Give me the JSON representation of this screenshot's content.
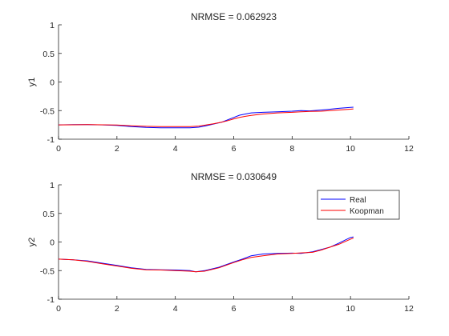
{
  "chart_data": [
    {
      "type": "line",
      "title": "NRMSE = 0.062923",
      "xlabel": "",
      "ylabel": "y1",
      "xlim": [
        0,
        12
      ],
      "ylim": [
        -1,
        1
      ],
      "xticks": [
        "0",
        "2",
        "4",
        "6",
        "8",
        "10",
        "12"
      ],
      "yticks": [
        "-1",
        "-0.5",
        "0",
        "0.5",
        "1"
      ],
      "grid": false,
      "legend": false,
      "series": [
        {
          "name": "Real",
          "color": "#0000ff",
          "x": [
            0,
            0.5,
            1.0,
            1.5,
            2.0,
            2.5,
            3.0,
            3.5,
            4.0,
            4.5,
            4.8,
            5.0,
            5.3,
            5.6,
            5.8,
            6.0,
            6.2,
            6.4,
            6.6,
            7.0,
            7.5,
            8.0,
            8.3,
            8.6,
            9.0,
            9.3,
            9.6,
            10.0,
            10.1
          ],
          "y": [
            -0.75,
            -0.745,
            -0.745,
            -0.75,
            -0.76,
            -0.78,
            -0.795,
            -0.8,
            -0.8,
            -0.8,
            -0.79,
            -0.77,
            -0.735,
            -0.7,
            -0.66,
            -0.62,
            -0.58,
            -0.56,
            -0.54,
            -0.53,
            -0.52,
            -0.51,
            -0.5,
            -0.505,
            -0.49,
            -0.475,
            -0.46,
            -0.445,
            -0.44
          ]
        },
        {
          "name": "Koopman",
          "color": "#ff0000",
          "x": [
            0,
            0.5,
            1.0,
            1.5,
            2.0,
            2.5,
            3.0,
            3.5,
            4.0,
            4.5,
            4.8,
            5.0,
            5.3,
            5.6,
            5.8,
            6.0,
            6.2,
            6.4,
            6.6,
            7.0,
            7.5,
            8.0,
            8.3,
            8.6,
            9.0,
            9.3,
            9.6,
            10.0,
            10.1
          ],
          "y": [
            -0.75,
            -0.748,
            -0.745,
            -0.748,
            -0.752,
            -0.765,
            -0.775,
            -0.78,
            -0.78,
            -0.78,
            -0.77,
            -0.755,
            -0.73,
            -0.7,
            -0.675,
            -0.645,
            -0.62,
            -0.6,
            -0.585,
            -0.56,
            -0.54,
            -0.53,
            -0.52,
            -0.515,
            -0.51,
            -0.5,
            -0.49,
            -0.475,
            -0.47
          ]
        }
      ]
    },
    {
      "type": "line",
      "title": "NRMSE = 0.030649",
      "xlabel": "",
      "ylabel": "y2",
      "xlim": [
        0,
        12
      ],
      "ylim": [
        -1,
        1
      ],
      "xticks": [
        "0",
        "2",
        "4",
        "6",
        "8",
        "10",
        "12"
      ],
      "yticks": [
        "-1",
        "-0.5",
        "0",
        "0.5",
        "1"
      ],
      "grid": false,
      "legend": true,
      "legend_placement": "top-right",
      "series": [
        {
          "name": "Real",
          "color": "#0000ff",
          "x": [
            0,
            0.5,
            1.0,
            1.5,
            2.0,
            2.5,
            3.0,
            3.5,
            4.0,
            4.5,
            4.7,
            5.0,
            5.5,
            6.0,
            6.3,
            6.6,
            7.0,
            7.5,
            8.0,
            8.3,
            8.7,
            9.0,
            9.3,
            9.6,
            10.0,
            10.1
          ],
          "y": [
            -0.3,
            -0.31,
            -0.33,
            -0.37,
            -0.41,
            -0.45,
            -0.48,
            -0.485,
            -0.49,
            -0.5,
            -0.52,
            -0.5,
            -0.44,
            -0.35,
            -0.3,
            -0.24,
            -0.21,
            -0.2,
            -0.195,
            -0.2,
            -0.17,
            -0.13,
            -0.09,
            -0.02,
            0.08,
            0.09
          ]
        },
        {
          "name": "Koopman",
          "color": "#ff0000",
          "x": [
            0,
            0.5,
            1.0,
            1.5,
            2.0,
            2.5,
            3.0,
            3.5,
            4.0,
            4.5,
            4.7,
            5.0,
            5.5,
            6.0,
            6.3,
            6.6,
            7.0,
            7.5,
            8.0,
            8.3,
            8.7,
            9.0,
            9.3,
            9.6,
            10.0,
            10.1
          ],
          "y": [
            -0.3,
            -0.31,
            -0.34,
            -0.38,
            -0.42,
            -0.46,
            -0.485,
            -0.49,
            -0.5,
            -0.51,
            -0.52,
            -0.51,
            -0.45,
            -0.36,
            -0.31,
            -0.27,
            -0.24,
            -0.21,
            -0.2,
            -0.19,
            -0.18,
            -0.14,
            -0.09,
            -0.04,
            0.05,
            0.07
          ]
        }
      ]
    }
  ]
}
